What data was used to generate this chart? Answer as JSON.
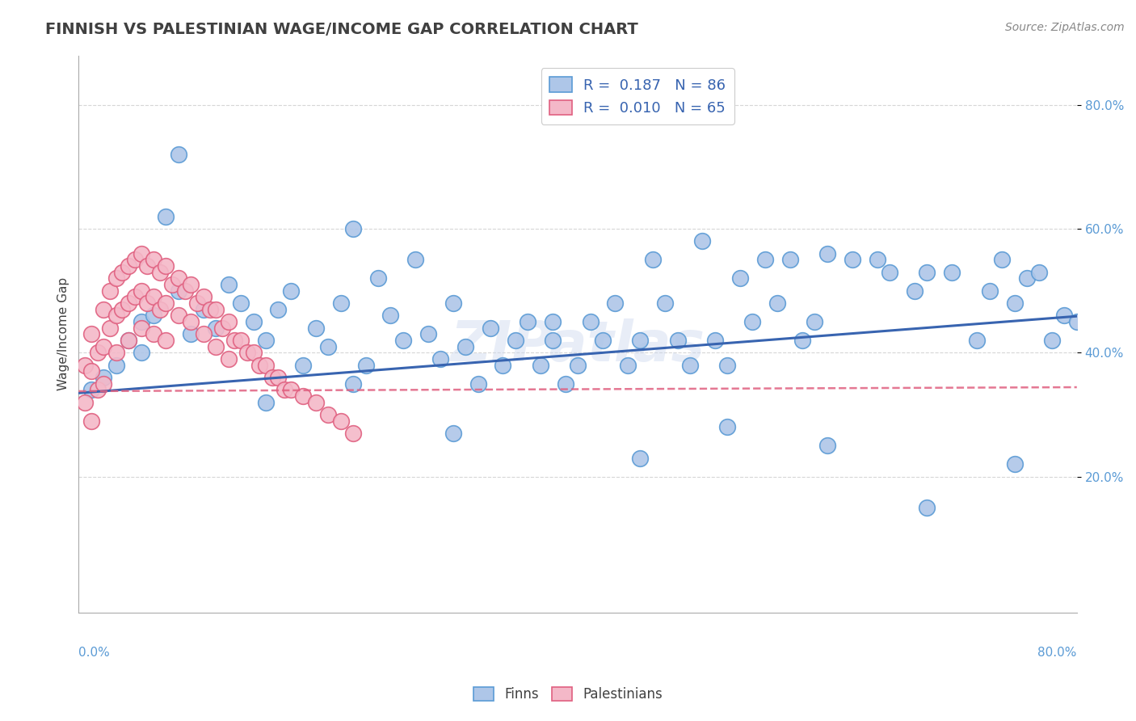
{
  "title": "FINNISH VS PALESTINIAN WAGE/INCOME GAP CORRELATION CHART",
  "source": "Source: ZipAtlas.com",
  "ylabel": "Wage/Income Gap",
  "ytick_labels": [
    "20.0%",
    "40.0%",
    "60.0%",
    "80.0%"
  ],
  "ytick_values": [
    0.2,
    0.4,
    0.6,
    0.8
  ],
  "xmin": 0.0,
  "xmax": 0.8,
  "ymin": -0.02,
  "ymax": 0.88,
  "watermark": "ZIPatlas",
  "legend1_label": "R =  0.187   N = 86",
  "legend2_label": "R =  0.010   N = 65",
  "legend_bottom_label1": "Finns",
  "legend_bottom_label2": "Palestinians",
  "finn_color": "#aec6e8",
  "finn_edge_color": "#5b9bd5",
  "pales_color": "#f4b8c8",
  "pales_edge_color": "#e06080",
  "finn_line_color": "#3864b0",
  "pales_line_color": "#e06080",
  "grid_color": "#cccccc",
  "background_color": "#ffffff",
  "title_color": "#404040",
  "axis_label_color": "#5b9bd5",
  "finn_line_intercept": 0.335,
  "finn_line_slope": 0.155,
  "pales_line_intercept": 0.338,
  "pales_line_slope": 0.008,
  "finn_scatter_x": [
    0.01,
    0.02,
    0.03,
    0.04,
    0.05,
    0.05,
    0.06,
    0.07,
    0.08,
    0.09,
    0.1,
    0.11,
    0.12,
    0.13,
    0.14,
    0.15,
    0.16,
    0.17,
    0.18,
    0.19,
    0.2,
    0.21,
    0.22,
    0.23,
    0.24,
    0.25,
    0.26,
    0.27,
    0.28,
    0.29,
    0.3,
    0.31,
    0.32,
    0.33,
    0.34,
    0.35,
    0.36,
    0.37,
    0.38,
    0.39,
    0.4,
    0.41,
    0.42,
    0.43,
    0.44,
    0.45,
    0.46,
    0.47,
    0.48,
    0.49,
    0.5,
    0.51,
    0.52,
    0.53,
    0.54,
    0.55,
    0.56,
    0.57,
    0.58,
    0.59,
    0.6,
    0.62,
    0.64,
    0.65,
    0.67,
    0.68,
    0.7,
    0.72,
    0.73,
    0.74,
    0.75,
    0.76,
    0.77,
    0.78,
    0.79,
    0.8,
    0.08,
    0.15,
    0.22,
    0.3,
    0.38,
    0.45,
    0.52,
    0.6,
    0.68,
    0.75
  ],
  "finn_scatter_y": [
    0.34,
    0.36,
    0.38,
    0.42,
    0.45,
    0.4,
    0.46,
    0.62,
    0.5,
    0.43,
    0.47,
    0.44,
    0.51,
    0.48,
    0.45,
    0.42,
    0.47,
    0.5,
    0.38,
    0.44,
    0.41,
    0.48,
    0.35,
    0.38,
    0.52,
    0.46,
    0.42,
    0.55,
    0.43,
    0.39,
    0.48,
    0.41,
    0.35,
    0.44,
    0.38,
    0.42,
    0.45,
    0.38,
    0.42,
    0.35,
    0.38,
    0.45,
    0.42,
    0.48,
    0.38,
    0.42,
    0.55,
    0.48,
    0.42,
    0.38,
    0.58,
    0.42,
    0.38,
    0.52,
    0.45,
    0.55,
    0.48,
    0.55,
    0.42,
    0.45,
    0.56,
    0.55,
    0.55,
    0.53,
    0.5,
    0.53,
    0.53,
    0.42,
    0.5,
    0.55,
    0.48,
    0.52,
    0.53,
    0.42,
    0.46,
    0.45,
    0.72,
    0.32,
    0.6,
    0.27,
    0.45,
    0.23,
    0.28,
    0.25,
    0.15,
    0.22
  ],
  "pales_scatter_x": [
    0.005,
    0.005,
    0.01,
    0.01,
    0.01,
    0.015,
    0.015,
    0.02,
    0.02,
    0.02,
    0.025,
    0.025,
    0.03,
    0.03,
    0.03,
    0.035,
    0.035,
    0.04,
    0.04,
    0.04,
    0.045,
    0.045,
    0.05,
    0.05,
    0.05,
    0.055,
    0.055,
    0.06,
    0.06,
    0.06,
    0.065,
    0.065,
    0.07,
    0.07,
    0.07,
    0.075,
    0.08,
    0.08,
    0.085,
    0.09,
    0.09,
    0.095,
    0.1,
    0.1,
    0.105,
    0.11,
    0.11,
    0.115,
    0.12,
    0.12,
    0.125,
    0.13,
    0.135,
    0.14,
    0.145,
    0.15,
    0.155,
    0.16,
    0.165,
    0.17,
    0.18,
    0.19,
    0.2,
    0.21,
    0.22
  ],
  "pales_scatter_y": [
    0.38,
    0.32,
    0.43,
    0.37,
    0.29,
    0.4,
    0.34,
    0.47,
    0.41,
    0.35,
    0.5,
    0.44,
    0.52,
    0.46,
    0.4,
    0.53,
    0.47,
    0.54,
    0.48,
    0.42,
    0.55,
    0.49,
    0.56,
    0.5,
    0.44,
    0.54,
    0.48,
    0.55,
    0.49,
    0.43,
    0.53,
    0.47,
    0.54,
    0.48,
    0.42,
    0.51,
    0.52,
    0.46,
    0.5,
    0.51,
    0.45,
    0.48,
    0.49,
    0.43,
    0.47,
    0.47,
    0.41,
    0.44,
    0.45,
    0.39,
    0.42,
    0.42,
    0.4,
    0.4,
    0.38,
    0.38,
    0.36,
    0.36,
    0.34,
    0.34,
    0.33,
    0.32,
    0.3,
    0.29,
    0.27
  ]
}
